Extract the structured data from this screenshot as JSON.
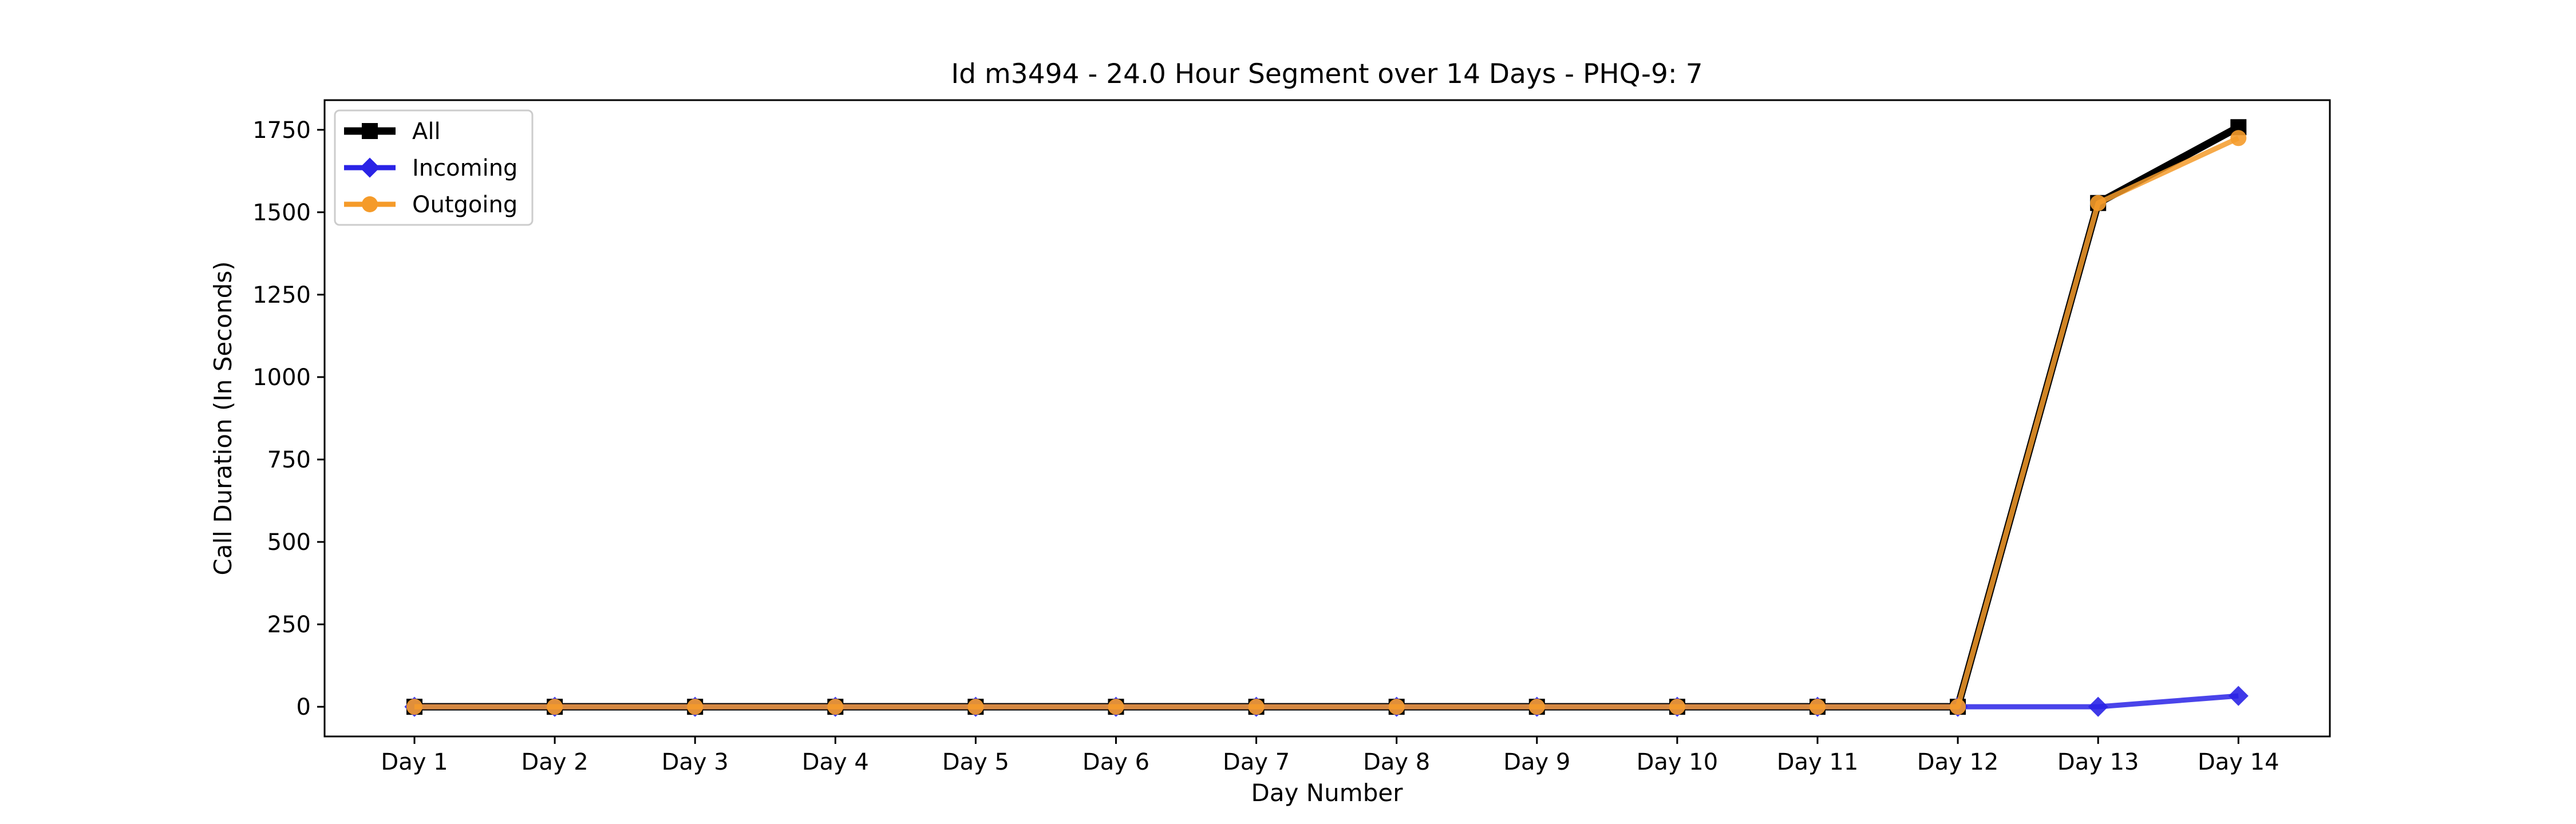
{
  "chart_data": {
    "type": "line",
    "title": "Id m3494 - 24.0 Hour Segment over 14 Days - PHQ-9: 7",
    "xlabel": "Day Number",
    "ylabel": "Call Duration (In Seconds)",
    "categories": [
      "Day 1",
      "Day 2",
      "Day 3",
      "Day 4",
      "Day 5",
      "Day 6",
      "Day 7",
      "Day 8",
      "Day 9",
      "Day 10",
      "Day 11",
      "Day 12",
      "Day 13",
      "Day 14"
    ],
    "yticks": [
      0,
      250,
      500,
      750,
      1000,
      1250,
      1500,
      1750
    ],
    "ylim": [
      -90,
      1840
    ],
    "grid": false,
    "legend_position": "upper-left",
    "series": [
      {
        "name": "All",
        "color": "#000000",
        "marker": "square",
        "values": [
          0,
          0,
          0,
          0,
          0,
          0,
          0,
          0,
          0,
          0,
          0,
          0,
          1528,
          1758
        ]
      },
      {
        "name": "Incoming",
        "color": "#2a23e6",
        "marker": "diamond",
        "values": [
          0,
          0,
          0,
          0,
          0,
          0,
          0,
          0,
          0,
          0,
          0,
          0,
          0,
          33
        ]
      },
      {
        "name": "Outgoing",
        "color": "#f59b2a",
        "marker": "circle",
        "values": [
          0,
          0,
          0,
          0,
          0,
          0,
          0,
          0,
          0,
          0,
          0,
          0,
          1528,
          1725
        ]
      }
    ]
  }
}
